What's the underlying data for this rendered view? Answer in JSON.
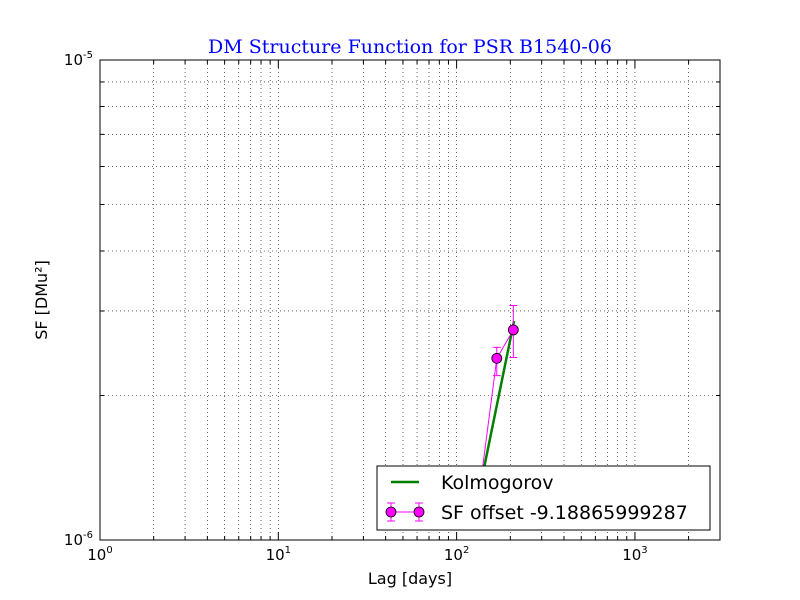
{
  "chart_data": {
    "type": "scatter",
    "title": "DM Structure Function for PSR B1540-06",
    "xlabel": "Lag [days]",
    "ylabel": "SF [DMu²]",
    "xscale": "log",
    "yscale": "log",
    "xlim": [
      1,
      3000
    ],
    "ylim": [
      1e-06,
      1e-05
    ],
    "grid": true,
    "legend_position": "lower-right",
    "x_ticks": [
      {
        "base": "10",
        "exp": "0",
        "value": 1
      },
      {
        "base": "10",
        "exp": "1",
        "value": 10
      },
      {
        "base": "10",
        "exp": "2",
        "value": 100
      },
      {
        "base": "10",
        "exp": "3",
        "value": 1000
      }
    ],
    "y_ticks": [
      {
        "base": "10",
        "exp": "-6",
        "value": 1e-06
      },
      {
        "base": "10",
        "exp": "-5",
        "value": 1e-05
      }
    ],
    "series": [
      {
        "name": "Kolmogorov",
        "kind": "line",
        "color": "#008000",
        "x": [
          132,
          210
        ],
        "y": [
          1.23e-06,
          2.86e-06
        ]
      },
      {
        "name": "SF offset -9.18865999287",
        "kind": "errorbar",
        "color": "#ff00ff",
        "x": [
          132,
          168,
          208
        ],
        "y": [
          1.2e-06,
          2.39e-06,
          2.74e-06
        ],
        "y_low": [
          1.13e-06,
          2.2e-06,
          2.4e-06
        ],
        "y_high": [
          1.27e-06,
          2.52e-06,
          3.08e-06
        ]
      }
    ]
  }
}
